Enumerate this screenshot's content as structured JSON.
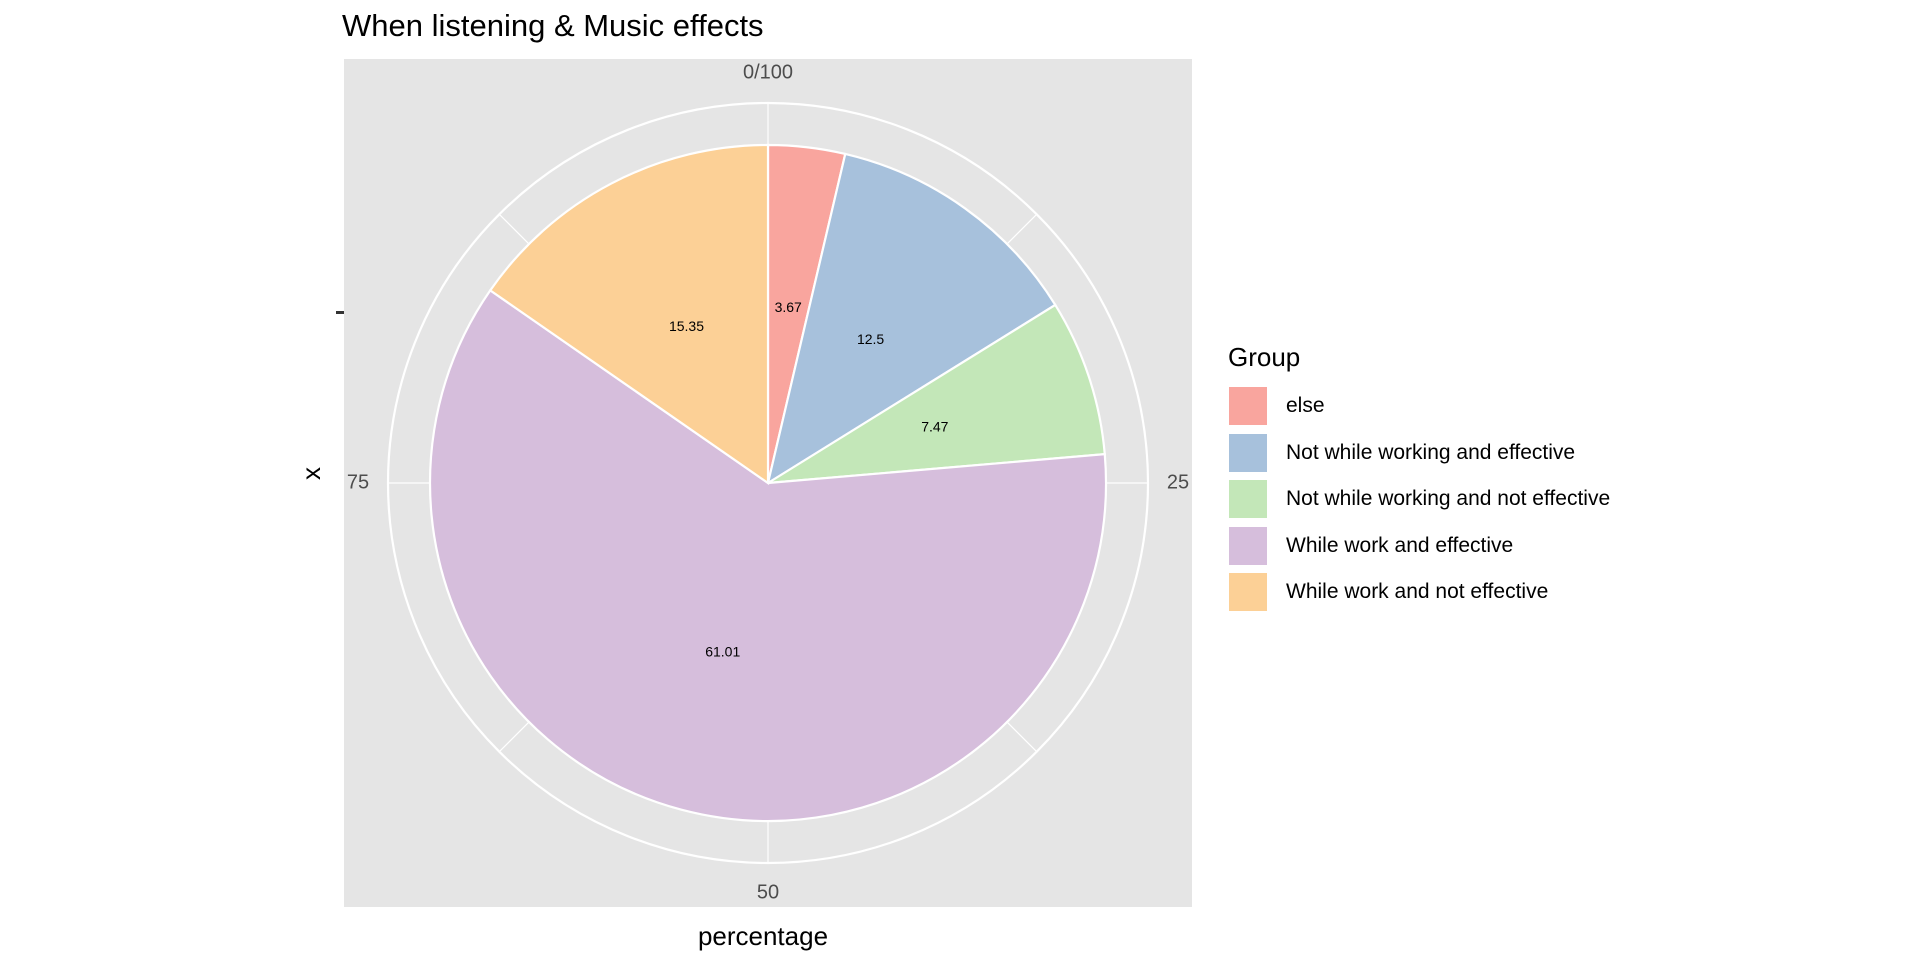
{
  "chart_data": {
    "type": "pie",
    "title": "When listening & Music effects",
    "xlabel": "percentage",
    "ylabel": "x",
    "y_tick_labels": [
      ""
    ],
    "angular_ticks": [
      "0/100",
      "25",
      "50",
      "75"
    ],
    "legend_title": "Group",
    "legend_position": "right",
    "grid": true,
    "slices": [
      {
        "label": "else",
        "value": 3.67,
        "color": "#F9A59E"
      },
      {
        "label": "Not while working and effective",
        "value": 12.5,
        "color": "#A7C1DC"
      },
      {
        "label": "Not while working and not effective",
        "value": 7.47,
        "color": "#C3E7B8"
      },
      {
        "label": "While work and effective",
        "value": 61.01,
        "color": "#D6BEDC"
      },
      {
        "label": "While work and not effective",
        "value": 15.35,
        "color": "#FCD096"
      }
    ]
  },
  "colors": {
    "panel_background": "#E5E5E5",
    "grid": "#FFFFFF",
    "slice_border": "#FFFFFF"
  }
}
